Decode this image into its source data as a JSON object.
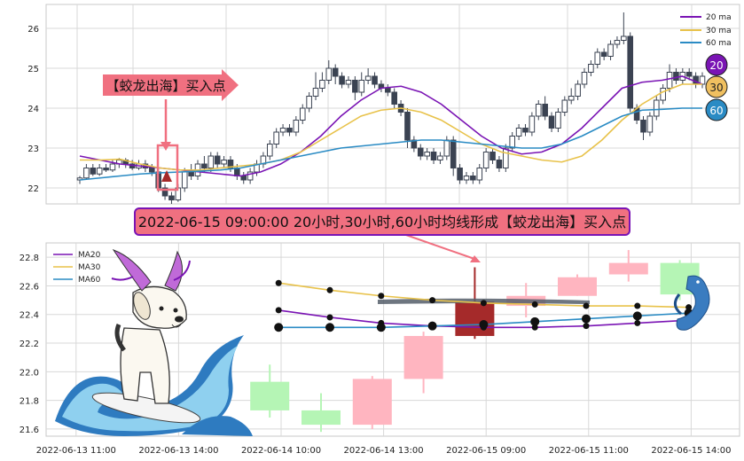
{
  "colors": {
    "ma20": "#7a14b4",
    "ma30": "#e8c24a",
    "ma60": "#2a8bc4",
    "bear_top": "#3b4352",
    "bull_bottom_up": "#ffb5c0",
    "bull_bottom_down": "#b5f5b5",
    "highlight": "#a52a2a",
    "banner_fill": "#f07080",
    "banner_border": "#7a14b4",
    "grid": "#d8d8d8",
    "bg": "#ffffff"
  },
  "annotations": {
    "buy_label": "【蛟龙出海】买入点",
    "banner": "2022-06-15 09:00:00 20小时,30小时,60小时均线形成【蛟龙出海】买入点",
    "bubble_20": "20",
    "bubble_30": "30",
    "bubble_60": "60"
  },
  "icons": [
    "dragon-dog-surfing-illustration",
    "blue-dragon-icon"
  ],
  "chart_data": [
    {
      "type": "candlestick",
      "id": "top",
      "ylim": [
        21.6,
        26.6
      ],
      "yticks": [
        22,
        23,
        24,
        25,
        26
      ],
      "grid": true,
      "legend": {
        "placement": "top-right",
        "entries": [
          "20 ma",
          "30 ma",
          "60 ma"
        ]
      },
      "candles": [
        [
          22.2,
          22.25,
          22.1,
          22.3
        ],
        [
          22.25,
          22.5,
          22.2,
          22.6
        ],
        [
          22.5,
          22.35,
          22.3,
          22.6
        ],
        [
          22.35,
          22.5,
          22.3,
          22.6
        ],
        [
          22.5,
          22.45,
          22.4,
          22.6
        ],
        [
          22.45,
          22.6,
          22.4,
          22.7
        ],
        [
          22.6,
          22.7,
          22.5,
          22.75
        ],
        [
          22.7,
          22.6,
          22.5,
          22.75
        ],
        [
          22.6,
          22.5,
          22.45,
          22.7
        ],
        [
          22.5,
          22.6,
          22.45,
          22.7
        ],
        [
          22.6,
          22.5,
          22.4,
          22.7
        ],
        [
          22.5,
          22.4,
          22.3,
          22.6
        ],
        [
          22.4,
          22.0,
          21.9,
          22.5
        ],
        [
          22.0,
          21.8,
          21.7,
          22.1
        ],
        [
          21.8,
          21.7,
          21.6,
          21.9
        ],
        [
          21.7,
          22.0,
          21.65,
          22.1
        ],
        [
          22.0,
          22.4,
          21.9,
          22.5
        ],
        [
          22.4,
          22.3,
          22.2,
          22.6
        ],
        [
          22.3,
          22.6,
          22.2,
          22.7
        ],
        [
          22.6,
          22.5,
          22.4,
          22.8
        ],
        [
          22.5,
          22.8,
          22.4,
          22.9
        ],
        [
          22.8,
          22.6,
          22.5,
          22.9
        ],
        [
          22.6,
          22.7,
          22.5,
          22.8
        ],
        [
          22.7,
          22.5,
          22.4,
          22.8
        ],
        [
          22.5,
          22.3,
          22.2,
          22.6
        ],
        [
          22.3,
          22.2,
          22.1,
          22.4
        ],
        [
          22.2,
          22.4,
          22.1,
          22.5
        ],
        [
          22.4,
          22.6,
          22.3,
          22.7
        ],
        [
          22.6,
          22.8,
          22.5,
          22.9
        ],
        [
          22.8,
          23.1,
          22.7,
          23.2
        ],
        [
          23.1,
          23.4,
          23.0,
          23.5
        ],
        [
          23.4,
          23.5,
          23.3,
          23.6
        ],
        [
          23.5,
          23.4,
          23.3,
          23.6
        ],
        [
          23.4,
          23.7,
          23.3,
          23.8
        ],
        [
          23.7,
          24.0,
          23.6,
          24.1
        ],
        [
          24.0,
          24.3,
          23.9,
          24.4
        ],
        [
          24.3,
          24.5,
          24.2,
          24.9
        ],
        [
          24.5,
          24.7,
          24.4,
          24.9
        ],
        [
          24.7,
          25.0,
          24.6,
          25.2
        ],
        [
          25.0,
          24.8,
          24.6,
          25.1
        ],
        [
          24.8,
          24.6,
          24.5,
          24.9
        ],
        [
          24.6,
          24.7,
          24.5,
          24.8
        ],
        [
          24.7,
          24.4,
          24.2,
          24.8
        ],
        [
          24.4,
          24.7,
          24.3,
          24.9
        ],
        [
          24.7,
          24.8,
          24.6,
          25.0
        ],
        [
          24.8,
          24.6,
          24.5,
          24.9
        ],
        [
          24.6,
          24.5,
          24.4,
          24.7
        ],
        [
          24.5,
          24.4,
          24.3,
          24.6
        ],
        [
          24.4,
          24.1,
          24.0,
          24.5
        ],
        [
          24.1,
          23.9,
          23.8,
          24.2
        ],
        [
          23.9,
          23.2,
          23.0,
          24.0
        ],
        [
          23.2,
          23.0,
          22.9,
          23.3
        ],
        [
          23.0,
          22.8,
          22.7,
          23.1
        ],
        [
          22.8,
          22.9,
          22.7,
          23.0
        ],
        [
          22.9,
          22.7,
          22.6,
          23.0
        ],
        [
          22.7,
          22.8,
          22.6,
          22.9
        ],
        [
          22.8,
          23.2,
          22.7,
          23.3
        ],
        [
          23.2,
          22.5,
          22.3,
          23.3
        ],
        [
          22.5,
          22.2,
          22.1,
          22.6
        ],
        [
          22.2,
          22.3,
          22.1,
          22.4
        ],
        [
          22.3,
          22.2,
          22.1,
          22.4
        ],
        [
          22.2,
          22.5,
          22.1,
          22.6
        ],
        [
          22.5,
          22.9,
          22.4,
          23.0
        ],
        [
          22.9,
          22.7,
          22.6,
          23.0
        ],
        [
          22.7,
          22.5,
          22.4,
          22.8
        ],
        [
          22.5,
          23.0,
          22.4,
          23.1
        ],
        [
          23.0,
          23.3,
          22.9,
          23.4
        ],
        [
          23.3,
          23.5,
          23.2,
          23.6
        ],
        [
          23.5,
          23.4,
          23.3,
          23.6
        ],
        [
          23.4,
          23.8,
          23.3,
          23.9
        ],
        [
          23.8,
          24.1,
          23.7,
          24.2
        ],
        [
          24.1,
          23.8,
          23.7,
          24.3
        ],
        [
          23.8,
          23.5,
          23.4,
          23.9
        ],
        [
          23.5,
          23.9,
          23.4,
          24.0
        ],
        [
          23.9,
          24.2,
          23.8,
          24.3
        ],
        [
          24.2,
          24.3,
          24.1,
          24.5
        ],
        [
          24.3,
          24.6,
          24.2,
          24.7
        ],
        [
          24.6,
          24.9,
          24.5,
          25.0
        ],
        [
          24.9,
          25.1,
          24.8,
          25.2
        ],
        [
          25.1,
          25.4,
          25.0,
          25.5
        ],
        [
          25.4,
          25.3,
          25.2,
          25.5
        ],
        [
          25.3,
          25.6,
          25.2,
          25.7
        ],
        [
          25.6,
          25.7,
          25.5,
          25.8
        ],
        [
          25.7,
          25.8,
          25.6,
          26.4
        ],
        [
          25.8,
          24.0,
          23.9,
          25.9
        ],
        [
          24.0,
          23.7,
          23.6,
          24.1
        ],
        [
          23.7,
          23.4,
          23.2,
          23.8
        ],
        [
          23.4,
          23.8,
          23.3,
          23.9
        ],
        [
          23.8,
          24.2,
          23.7,
          24.3
        ],
        [
          24.2,
          24.5,
          24.1,
          24.6
        ],
        [
          24.5,
          24.9,
          24.4,
          25.1
        ],
        [
          24.9,
          24.7,
          24.6,
          25.0
        ],
        [
          24.7,
          24.9,
          24.6,
          25.0
        ],
        [
          24.9,
          24.8,
          24.7,
          25.0
        ],
        [
          24.8,
          24.6,
          24.5,
          24.9
        ],
        [
          24.6,
          24.8,
          24.5,
          24.9
        ]
      ],
      "series": [
        {
          "name": "20 ma",
          "color": "#7a14b4",
          "values": [
            22.8,
            22.7,
            22.6,
            22.55,
            22.5,
            22.45,
            22.4,
            22.35,
            22.3,
            22.4,
            22.6,
            22.9,
            23.3,
            23.8,
            24.2,
            24.5,
            24.55,
            24.4,
            24.1,
            23.7,
            23.3,
            23.0,
            22.85,
            22.9,
            23.1,
            23.5,
            24.0,
            24.5,
            24.65,
            24.7,
            24.8,
            24.6
          ]
        },
        {
          "name": "30 ma",
          "color": "#e8c24a",
          "values": [
            22.7,
            22.7,
            22.72,
            22.6,
            22.5,
            22.45,
            22.45,
            22.5,
            22.55,
            22.6,
            22.7,
            22.9,
            23.2,
            23.5,
            23.8,
            23.95,
            24.0,
            23.9,
            23.7,
            23.4,
            23.1,
            22.9,
            22.8,
            22.7,
            22.65,
            22.8,
            23.2,
            23.7,
            24.1,
            24.4,
            24.6,
            24.6
          ]
        },
        {
          "name": "60 ma",
          "color": "#2a8bc4",
          "values": [
            22.2,
            22.25,
            22.3,
            22.35,
            22.38,
            22.4,
            22.42,
            22.45,
            22.5,
            22.6,
            22.7,
            22.8,
            22.9,
            23.0,
            23.05,
            23.1,
            23.15,
            23.2,
            23.2,
            23.15,
            23.1,
            23.05,
            23.0,
            23.0,
            23.1,
            23.3,
            23.55,
            23.8,
            23.95,
            23.97,
            24.0,
            24.0
          ]
        }
      ]
    },
    {
      "type": "candlestick",
      "id": "bottom",
      "ylim": [
        21.55,
        22.9
      ],
      "yticks": [
        21.6,
        21.8,
        22.0,
        22.2,
        22.4,
        22.6,
        22.8
      ],
      "grid": true,
      "legend": {
        "placement": "top-left",
        "entries": [
          "MA20",
          "MA30",
          "MA60"
        ]
      },
      "x_ticks": [
        "2022-06-13 11:00",
        "2022-06-13 14:00",
        "2022-06-14 10:00",
        "2022-06-14 13:00",
        "2022-06-15 09:00",
        "2022-06-15 11:00",
        "2022-06-15 14:00"
      ],
      "candles": [
        {
          "x": 4,
          "open": 21.93,
          "close": 21.73,
          "low": 21.68,
          "high": 22.05,
          "style": "down"
        },
        {
          "x": 5,
          "open": 21.73,
          "close": 21.63,
          "low": 21.58,
          "high": 21.85,
          "style": "down"
        },
        {
          "x": 6,
          "open": 21.63,
          "close": 21.95,
          "low": 21.6,
          "high": 21.97,
          "style": "up"
        },
        {
          "x": 7,
          "open": 21.95,
          "close": 22.25,
          "low": 21.85,
          "high": 22.28,
          "style": "up"
        },
        {
          "x": 8,
          "open": 22.49,
          "close": 22.25,
          "low": 22.23,
          "high": 22.73,
          "style": "highlight"
        },
        {
          "x": 9,
          "open": 22.46,
          "close": 22.53,
          "low": 22.38,
          "high": 22.62,
          "style": "up"
        },
        {
          "x": 10,
          "open": 22.53,
          "close": 22.66,
          "low": 22.53,
          "high": 22.68,
          "style": "up"
        },
        {
          "x": 11,
          "open": 22.68,
          "close": 22.76,
          "low": 22.63,
          "high": 22.85,
          "style": "up"
        },
        {
          "x": 12,
          "open": 22.54,
          "close": 22.76,
          "low": 22.5,
          "high": 22.78,
          "style": "down"
        }
      ],
      "series": [
        {
          "name": "MA20",
          "color": "#7a14b4",
          "x": [
            4,
            5,
            6,
            7,
            8,
            9,
            10,
            11,
            12
          ],
          "values": [
            22.43,
            22.38,
            22.34,
            22.32,
            22.31,
            22.31,
            22.32,
            22.34,
            22.36
          ]
        },
        {
          "name": "MA30",
          "color": "#e8c24a",
          "x": [
            4,
            5,
            6,
            7,
            8,
            9,
            10,
            11,
            12
          ],
          "values": [
            22.62,
            22.57,
            22.53,
            22.5,
            22.48,
            22.47,
            22.46,
            22.46,
            22.45
          ]
        },
        {
          "name": "MA60",
          "color": "#2a8bc4",
          "x": [
            4,
            5,
            6,
            7,
            8,
            9,
            10,
            11,
            12
          ],
          "values": [
            22.31,
            22.31,
            22.31,
            22.32,
            22.33,
            22.35,
            22.37,
            22.39,
            22.41
          ]
        }
      ]
    }
  ]
}
